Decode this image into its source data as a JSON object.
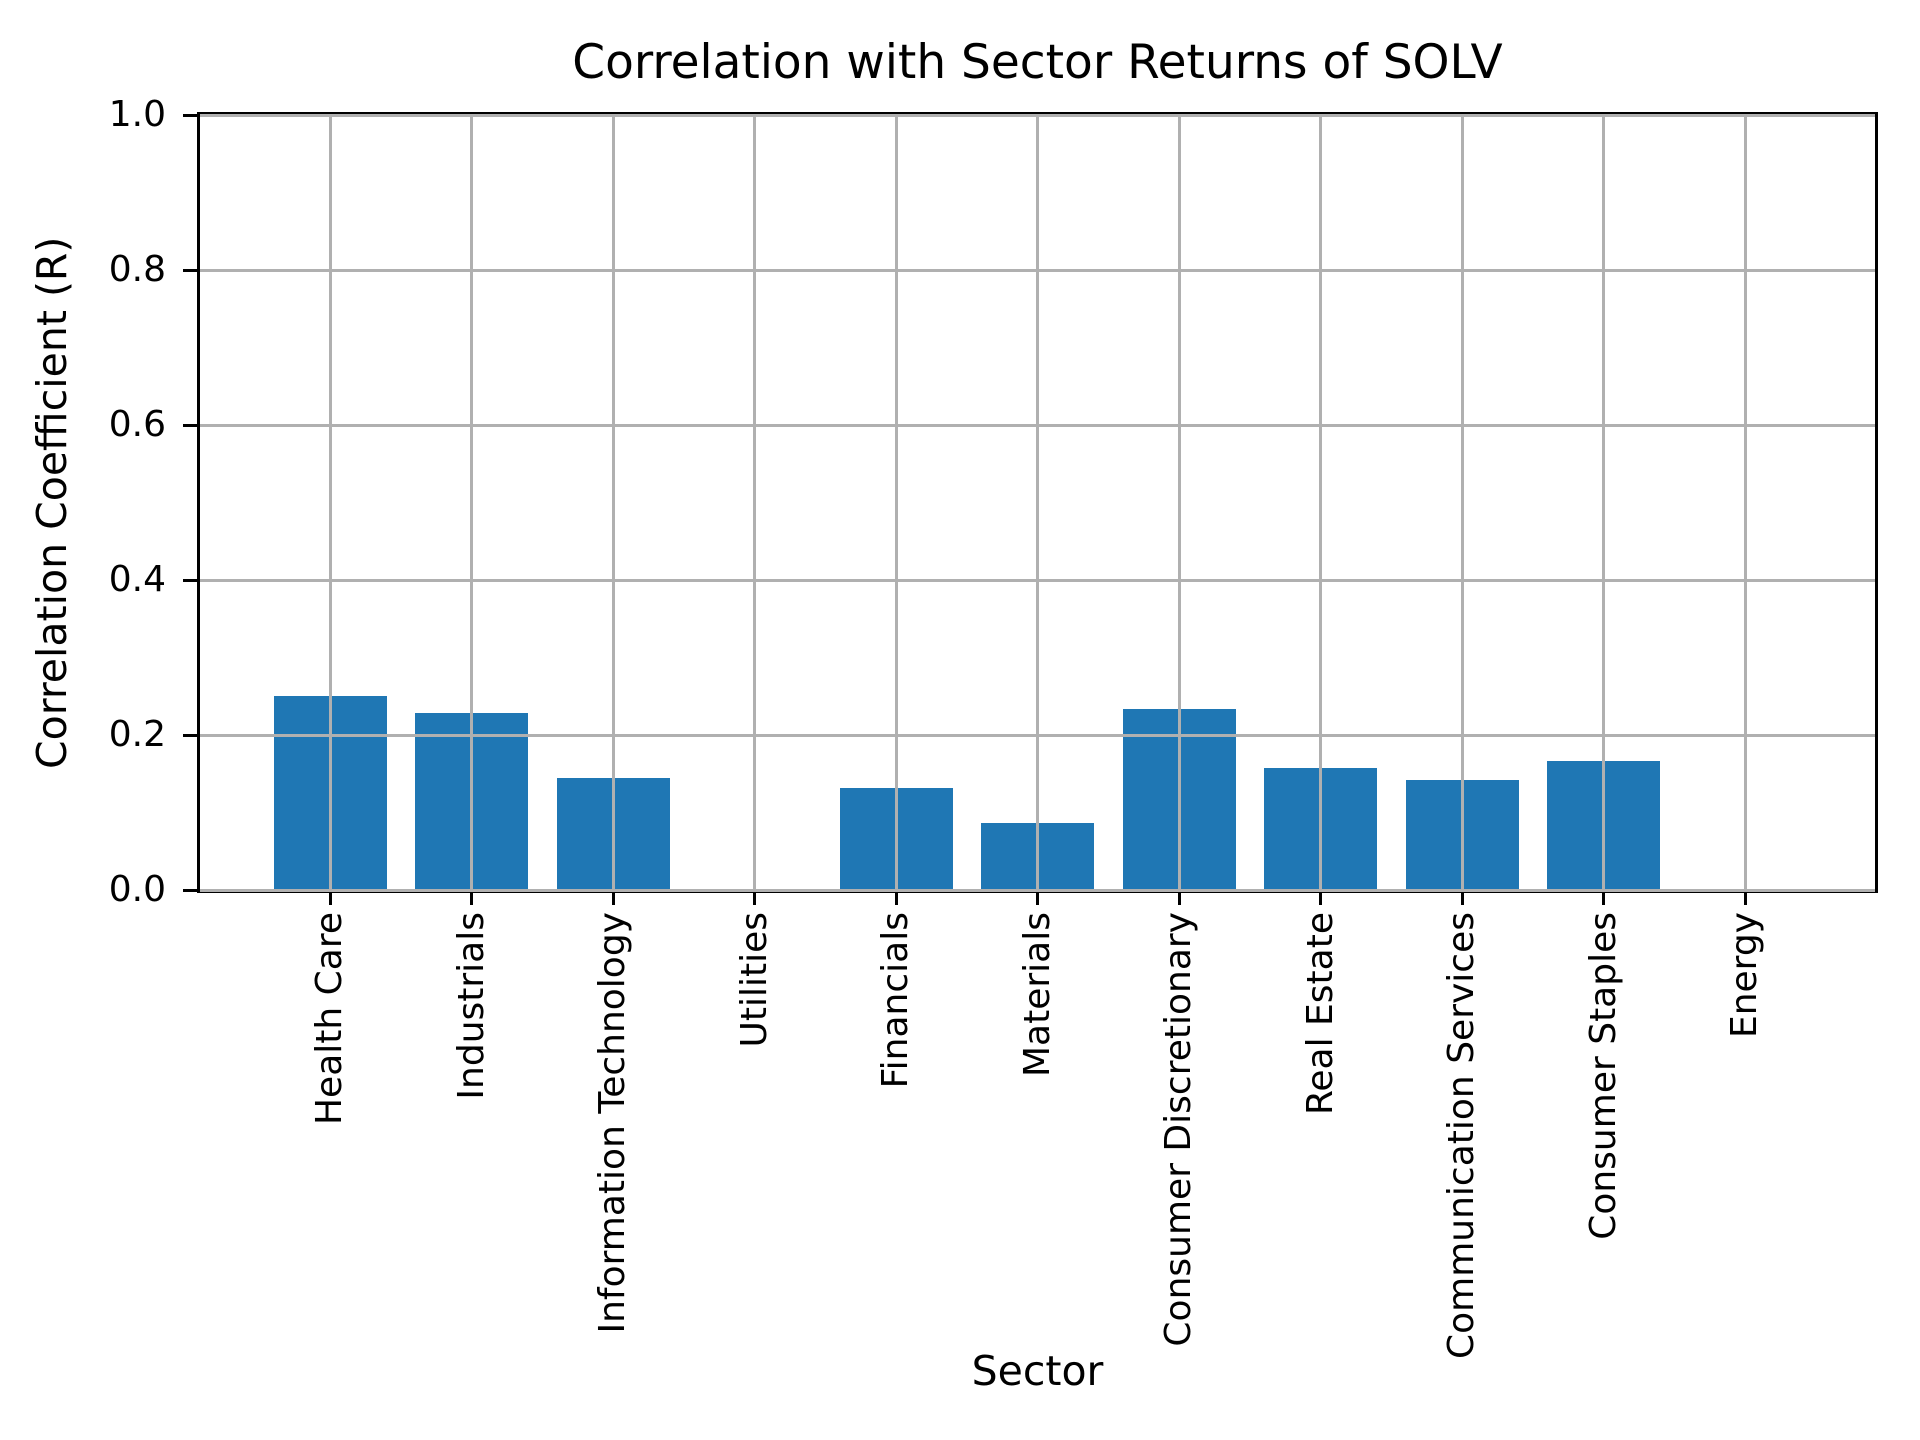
{
  "chart_data": {
    "type": "bar",
    "title": "Correlation with Sector Returns of SOLV",
    "xlabel": "Sector",
    "ylabel": "Correlation Coefficient (R)",
    "categories": [
      "Health Care",
      "Industrials",
      "Information Technology",
      "Utilities",
      "Financials",
      "Materials",
      "Consumer Discretionary",
      "Real Estate",
      "Communication Services",
      "Consumer Staples",
      "Energy"
    ],
    "values": [
      0.25,
      0.229,
      0.145,
      0.0,
      0.131,
      0.086,
      0.234,
      0.157,
      0.142,
      0.166,
      0.0
    ],
    "ylim": [
      0.0,
      1.0
    ],
    "yticks": [
      "0.0",
      "0.2",
      "0.4",
      "0.6",
      "0.8",
      "1.0"
    ],
    "grid": true,
    "legend": false,
    "bar_color": "#1f77b4",
    "grid_color": "#b0b0b0",
    "axis_color": "#000000",
    "background_color": "#ffffff"
  }
}
